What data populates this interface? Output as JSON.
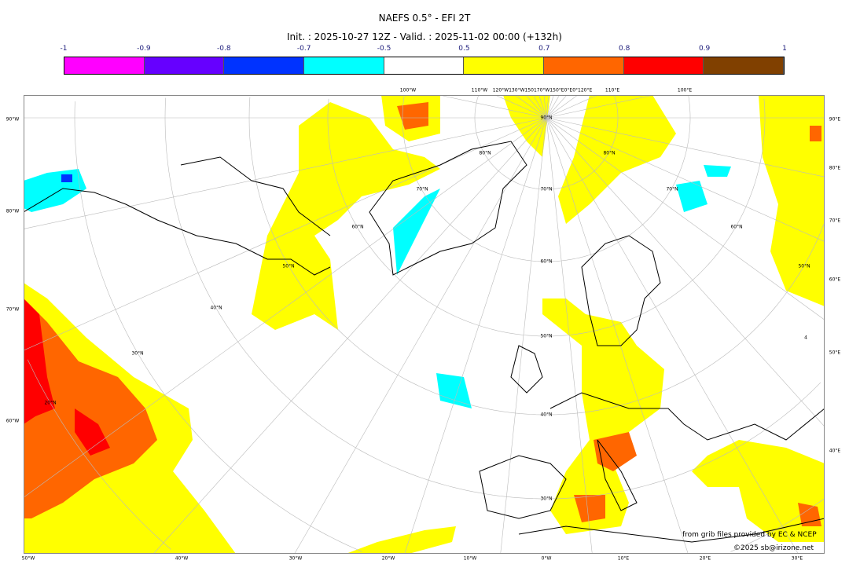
{
  "title": "NAEFS 0.5° - EFI 2T",
  "subtitle": "Init. : 2025-10-27 12Z - Valid. : 2025-11-02 00:00 (+132h)",
  "colorbar": {
    "ticks": [
      "-1",
      "-0.9",
      "-0.8",
      "-0.7",
      "-0.5",
      "0.5",
      "0.7",
      "0.8",
      "0.9",
      "1"
    ],
    "colors": [
      "#ff00ff",
      "#6600ff",
      "#0033ff",
      "#00ffff",
      "#ffffff",
      "#ffff00",
      "#ff6600",
      "#ff0000",
      "#804000"
    ]
  },
  "axes": {
    "left": [
      "90°W",
      "80°W",
      "70°W",
      "60°W"
    ],
    "right": [
      "90°E",
      "80°E",
      "70°E",
      "60°E",
      "50°E",
      "40°E"
    ],
    "bottom": [
      "50°W",
      "40°W",
      "30°W",
      "20°W",
      "10°W",
      "0°W",
      "10°E",
      "20°E",
      "30°E"
    ],
    "top": [
      "100°W",
      "110°W",
      "120°W130°W150170°W150°E0°E0°120°E",
      "110°E",
      "100°E"
    ],
    "lat_labels": [
      "90°N",
      "80°N",
      "80°N",
      "70°N",
      "70°N",
      "70°N",
      "60°N",
      "60°N",
      "60°N",
      "50°N",
      "50°N",
      "50°N",
      "40°N",
      "40°N",
      "30°N",
      "30°N",
      "20°N",
      "4"
    ]
  },
  "credits": {
    "source": "from grib files provided by EC & NCEP",
    "copyright": "©2025 sb@irizone.net"
  }
}
